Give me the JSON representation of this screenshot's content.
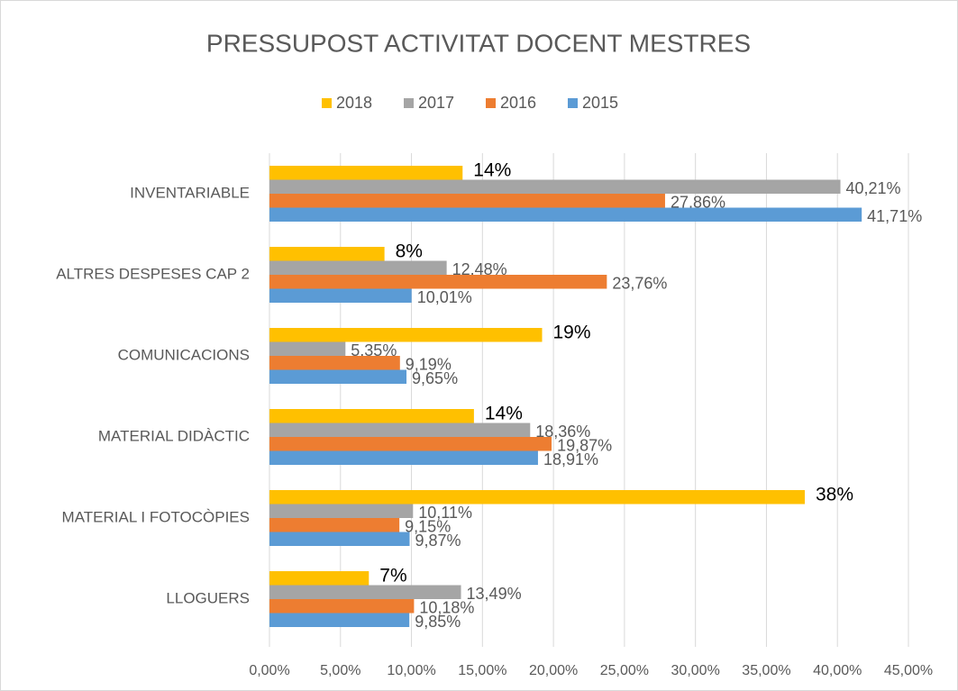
{
  "chart_data": {
    "type": "bar",
    "orientation": "horizontal",
    "title": "PRESSUPOST ACTIVITAT DOCENT MESTRES",
    "categories": [
      "INVENTARIABLE",
      "ALTRES DESPESES CAP 2",
      "COMUNICACIONS",
      "MATERIAL DIDÀCTIC",
      "MATERIAL I FOTOCÒPIES",
      "LLOGUERS"
    ],
    "series": [
      {
        "name": "2018",
        "color": "#FFC000",
        "values": [
          13.6,
          8.1,
          19.2,
          14.4,
          37.7,
          7.0
        ],
        "value_labels": [
          "14%",
          "8%",
          "19%",
          "14%",
          "38%",
          "7%"
        ]
      },
      {
        "name": "2017",
        "color": "#A5A5A5",
        "values": [
          40.21,
          12.48,
          5.35,
          18.36,
          10.11,
          13.49
        ],
        "value_labels": [
          "40,21%",
          "12,48%",
          "5,35%",
          "18,36%",
          "10,11%",
          "13,49%"
        ]
      },
      {
        "name": "2016",
        "color": "#ED7D31",
        "values": [
          27.86,
          23.76,
          9.19,
          19.87,
          9.15,
          10.18
        ],
        "value_labels": [
          "27,86%",
          "23,76%",
          "9,19%",
          "19,87%",
          "9,15%",
          "10,18%"
        ]
      },
      {
        "name": "2015",
        "color": "#5B9BD5",
        "values": [
          41.71,
          10.01,
          9.65,
          18.91,
          9.87,
          9.85
        ],
        "value_labels": [
          "41,71%",
          "10,01%",
          "9,65%",
          "18,91%",
          "9,87%",
          "9,85%"
        ]
      }
    ],
    "xlim": [
      0,
      45
    ],
    "xticks": [
      {
        "value": 0,
        "label": "0,00%"
      },
      {
        "value": 5,
        "label": "5,00%"
      },
      {
        "value": 10,
        "label": "10,00%"
      },
      {
        "value": 15,
        "label": "15,00%"
      },
      {
        "value": 20,
        "label": "20,00%"
      },
      {
        "value": 25,
        "label": "25,00%"
      },
      {
        "value": 30,
        "label": "30,00%"
      },
      {
        "value": 35,
        "label": "35,00%"
      },
      {
        "value": 40,
        "label": "40,00%"
      },
      {
        "value": 45,
        "label": "45,00%"
      }
    ],
    "grid": true,
    "legend": "top"
  }
}
